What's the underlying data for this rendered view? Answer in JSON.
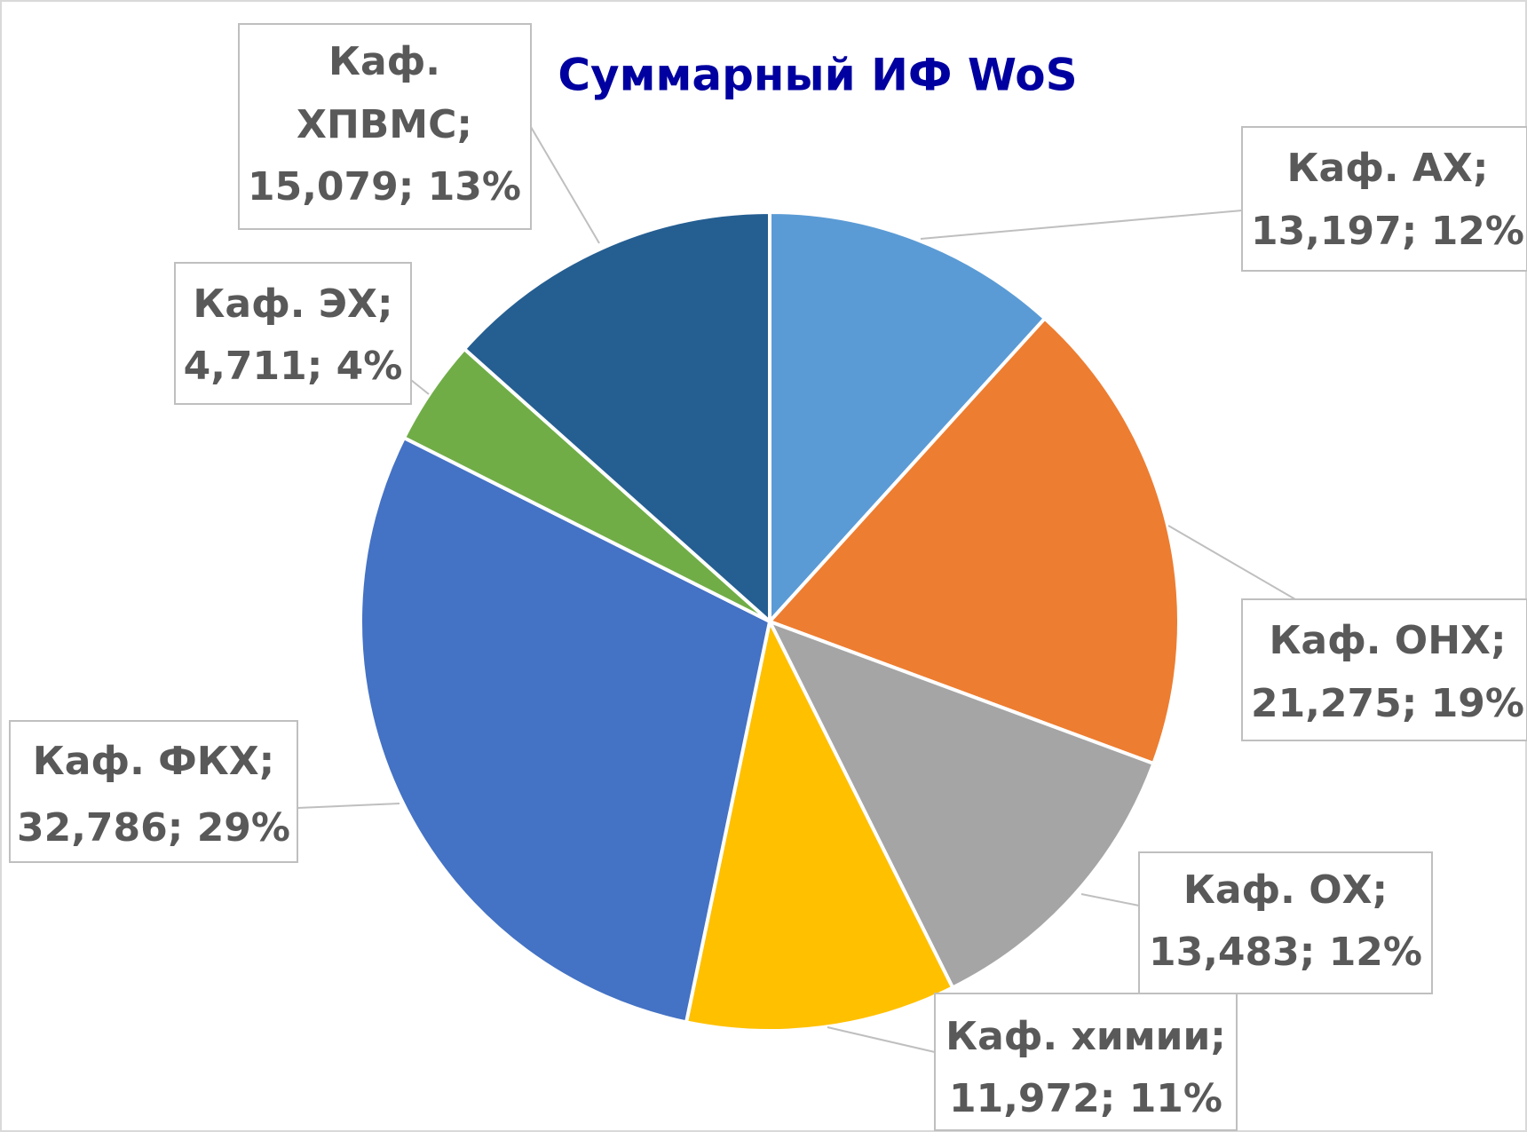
{
  "chart_data": {
    "type": "pie",
    "title": "Суммарный ИФ WoS",
    "categories": [
      "Каф. АХ;",
      "Каф. ОНХ;",
      "Каф. ОХ;",
      "Каф. химии;",
      "Каф. ФКХ;",
      "Каф. ЭХ;",
      "Каф. ХПВМС;"
    ],
    "values": [
      13.197,
      21.275,
      13.483,
      11.972,
      32.786,
      4.711,
      15.079
    ],
    "value_labels": [
      "13,197; 12%",
      "21,275; 19%",
      "13,483; 12%",
      "11,972; 11%",
      "32,786; 29%",
      "4,711; 4%",
      "15,079; 13%"
    ],
    "colors": [
      "#5b9bd5",
      "#ed7d31",
      "#a5a5a5",
      "#ffc000",
      "#4472c4",
      "#70ad47",
      "#255e91"
    ]
  }
}
